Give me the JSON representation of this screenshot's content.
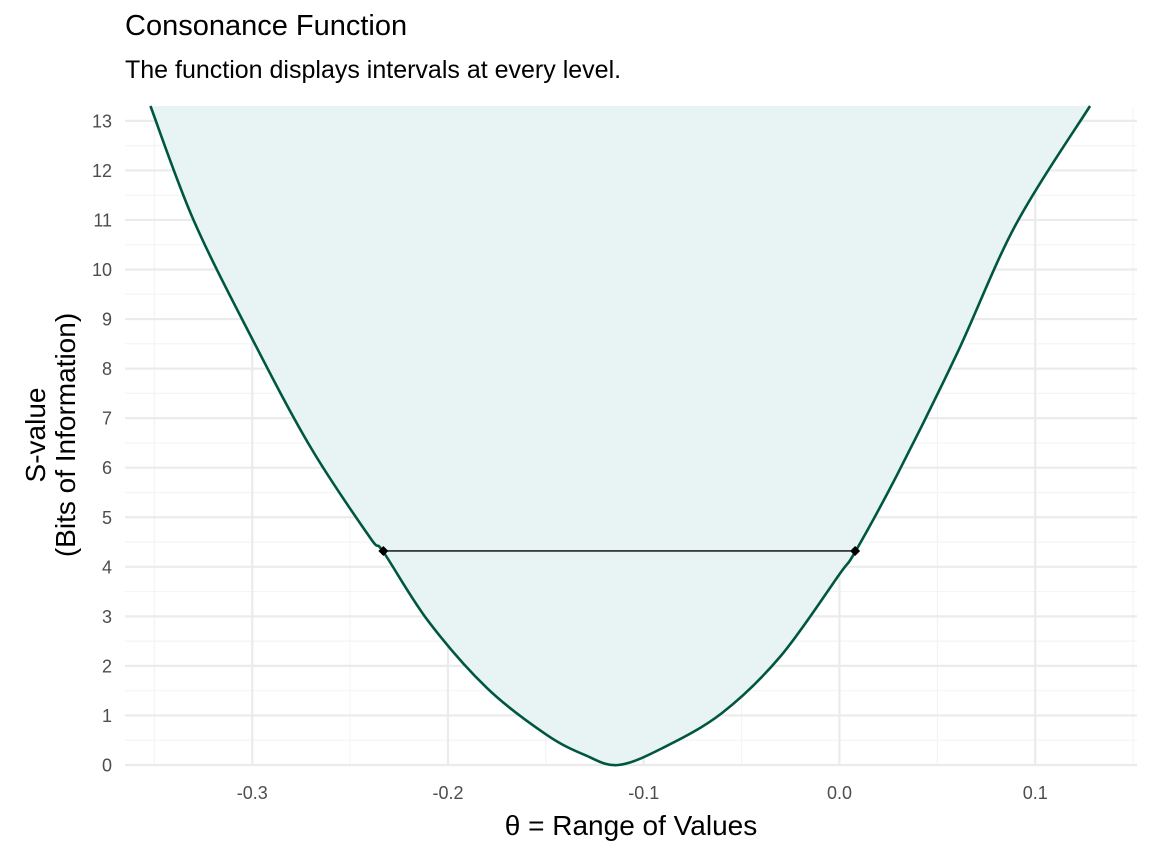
{
  "chart_data": {
    "type": "line",
    "title": "Consonance Function",
    "subtitle": "The function displays intervals at every level.",
    "xlabel": "θ =  Range of Values",
    "ylabel_line1": "S-value",
    "ylabel_line2": "(Bits of Information)",
    "xlim": [
      -0.365,
      0.152
    ],
    "ylim": [
      0,
      13.3
    ],
    "x_ticks": [
      -0.3,
      -0.2,
      -0.1,
      0.0,
      0.1
    ],
    "x_tick_labels": [
      "-0.3",
      "-0.2",
      "-0.1",
      "0.0",
      "0.1"
    ],
    "y_ticks": [
      0,
      1,
      2,
      3,
      4,
      5,
      6,
      7,
      8,
      9,
      10,
      11,
      12,
      13
    ],
    "y_tick_labels": [
      "0",
      "1",
      "2",
      "3",
      "4",
      "5",
      "6",
      "7",
      "8",
      "9",
      "10",
      "11",
      "12",
      "13"
    ],
    "grid": true,
    "series": [
      {
        "x": [
          -0.352,
          -0.33,
          -0.3,
          -0.27,
          -0.24,
          -0.233,
          -0.21,
          -0.18,
          -0.15,
          -0.13,
          -0.113,
          -0.09,
          -0.06,
          -0.03,
          0.0,
          0.008,
          0.03,
          0.06,
          0.09,
          0.128
        ],
        "y": [
          13.3,
          11.0,
          8.6,
          6.4,
          4.6,
          4.3,
          2.9,
          1.55,
          0.62,
          0.2,
          0.0,
          0.35,
          1.05,
          2.2,
          3.85,
          4.3,
          5.9,
          8.3,
          10.9,
          13.3
        ]
      }
    ],
    "interval": {
      "x_low": -0.233,
      "x_high": 0.008,
      "y": 4.32
    },
    "colors": {
      "line": "#00573f",
      "fill": "#e8f4f4",
      "grid_major": "#ebebeb",
      "grid_minor": "#f4f4f4",
      "interval": "#000000"
    }
  }
}
